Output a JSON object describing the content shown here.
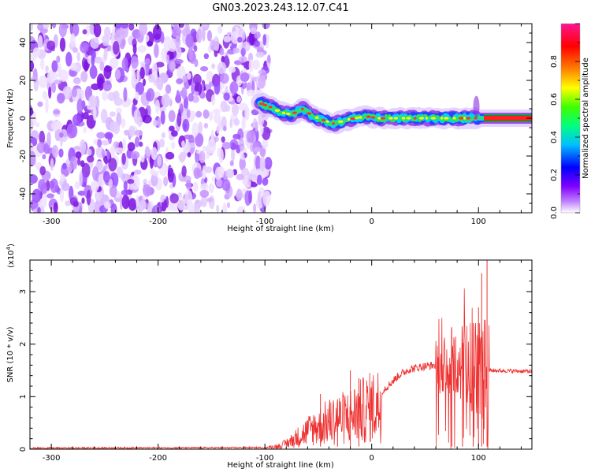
{
  "title": "GN03.2023.243.12.07.C41",
  "chart_data": [
    {
      "type": "heatmap",
      "xlabel": "Height of straight line (km)",
      "ylabel": "Frequency (Hz)",
      "xlim": [
        -320,
        150
      ],
      "ylim": [
        -50,
        50
      ],
      "x_ticks": [
        -300,
        -200,
        -100,
        0,
        100
      ],
      "y_ticks": [
        -40,
        -20,
        0,
        20,
        40
      ],
      "noise_region_x": [
        -320,
        -100
      ],
      "signal_trace": [
        {
          "x": -105,
          "y": 8
        },
        {
          "x": -95,
          "y": 6
        },
        {
          "x": -85,
          "y": 3
        },
        {
          "x": -75,
          "y": 2
        },
        {
          "x": -65,
          "y": 5
        },
        {
          "x": -55,
          "y": 1
        },
        {
          "x": -45,
          "y": -1
        },
        {
          "x": -35,
          "y": -3
        },
        {
          "x": -25,
          "y": -1
        },
        {
          "x": -15,
          "y": 0
        },
        {
          "x": -5,
          "y": 1
        },
        {
          "x": 5,
          "y": 0
        },
        {
          "x": 20,
          "y": 0
        },
        {
          "x": 40,
          "y": 0
        },
        {
          "x": 60,
          "y": 0
        },
        {
          "x": 80,
          "y": 0
        },
        {
          "x": 95,
          "y": 0
        },
        {
          "x": 105,
          "y": 0
        },
        {
          "x": 150,
          "y": 0
        }
      ],
      "grid": false
    },
    {
      "type": "colorbar",
      "label": "Normalized spectral amplitude",
      "range": [
        0,
        1
      ],
      "ticks": [
        "0.0",
        "0.2",
        "0.4",
        "0.6",
        "0.8"
      ],
      "colors": [
        "#a020f0",
        "#0000ff",
        "#00ffff",
        "#00ff00",
        "#ffff00",
        "#ff8000",
        "#ff0000",
        "#ff1493"
      ]
    },
    {
      "type": "line",
      "xlabel": "Height of straight line (km)",
      "ylabel": "SNR (10 * v/v)",
      "scale_label": "(x10",
      "scale_exp": "4",
      "scale_close": ")",
      "xlim": [
        -320,
        150
      ],
      "ylim": [
        0,
        3.6
      ],
      "x_ticks": [
        -300,
        -200,
        -100,
        0,
        100
      ],
      "y_ticks": [
        0,
        1,
        2,
        3
      ],
      "color": "#ee3030",
      "envelope": [
        {
          "x": -320,
          "y": 0.02
        },
        {
          "x": -100,
          "y": 0.03
        },
        {
          "x": -85,
          "y": 0.08
        },
        {
          "x": -75,
          "y": 0.2
        },
        {
          "x": -65,
          "y": 0.35
        },
        {
          "x": -55,
          "y": 0.5
        },
        {
          "x": -45,
          "y": 0.6
        },
        {
          "x": -35,
          "y": 0.7
        },
        {
          "x": -25,
          "y": 0.75
        },
        {
          "x": -15,
          "y": 0.85
        },
        {
          "x": -5,
          "y": 0.95
        },
        {
          "x": 5,
          "y": 1.05
        },
        {
          "x": 15,
          "y": 1.2
        },
        {
          "x": 25,
          "y": 1.4
        },
        {
          "x": 35,
          "y": 1.52
        },
        {
          "x": 50,
          "y": 1.58
        },
        {
          "x": 70,
          "y": 1.62
        },
        {
          "x": 90,
          "y": 1.6
        },
        {
          "x": 105,
          "y": 1.55
        },
        {
          "x": 110,
          "y": 1.5
        },
        {
          "x": 150,
          "y": 1.48
        }
      ],
      "spikes": [
        {
          "x": -48,
          "y": 1.05
        },
        {
          "x": -32,
          "y": 0.95
        },
        {
          "x": -20,
          "y": 1.5
        },
        {
          "x": -12,
          "y": 1.35
        },
        {
          "x": 75,
          "y": 2.3
        },
        {
          "x": 85,
          "y": 2.1
        },
        {
          "x": 95,
          "y": 2.4
        },
        {
          "x": 100,
          "y": 2.7
        },
        {
          "x": 103,
          "y": 3.35
        },
        {
          "x": 108,
          "y": 3.6
        }
      ],
      "grid": false
    }
  ]
}
